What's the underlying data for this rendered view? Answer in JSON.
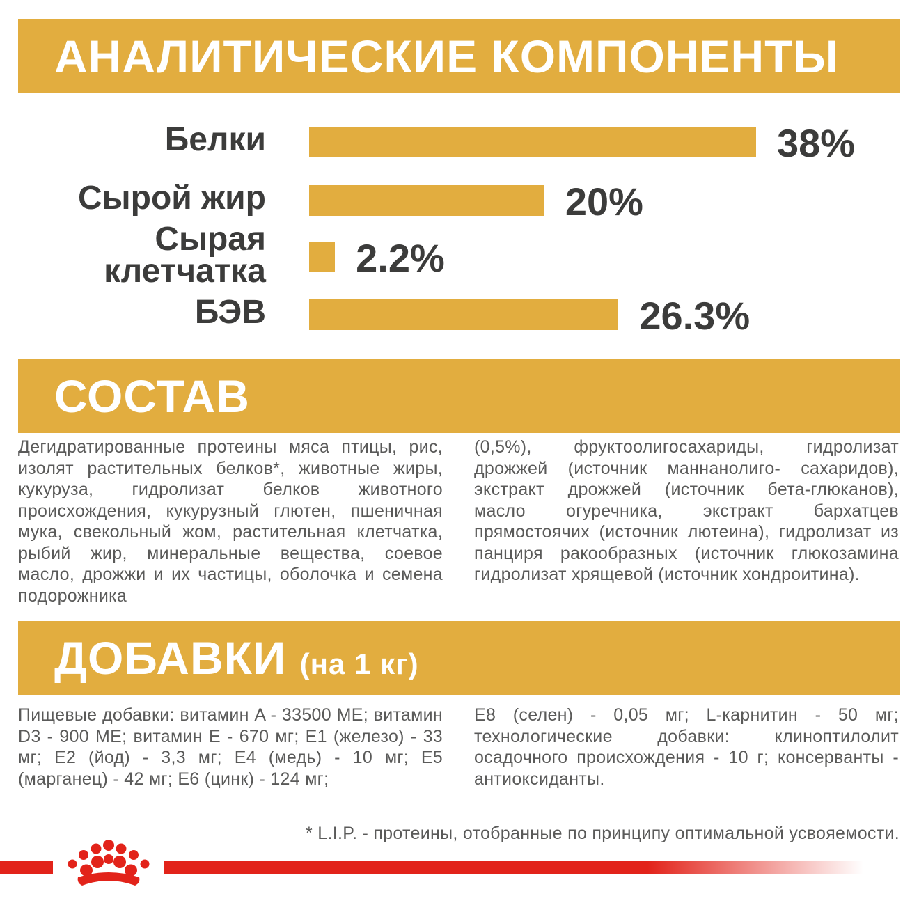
{
  "headers": {
    "analytics": "АНАЛИТИЧЕСКИЕ КОМПОНЕНТЫ",
    "composition": "СОСТАВ",
    "additives_main": "ДОБАВКИ",
    "additives_sub": "(на 1 кг)"
  },
  "chart_data": {
    "type": "bar",
    "orientation": "horizontal",
    "categories": [
      "Белки",
      "Сырой жир",
      "Сырая\nклетчатка",
      "БЭВ"
    ],
    "values": [
      38,
      20,
      2.2,
      26.3
    ],
    "value_labels": [
      "38%",
      "20%",
      "2.2%",
      "26.3%"
    ],
    "unit": "%",
    "xlim": [
      0,
      38
    ],
    "bar_color": "#e2ad3f",
    "grid": false,
    "legend": "none"
  },
  "composition": {
    "left": "Дегидратированные протеины мяса птицы, рис, изолят растительных белков*, животные жиры, кукуруза, гидролизат белков животного происхождения, кукурузный глютен, пшеничная мука, свекольный жом, растительная клетчатка, рыбий жир, минеральные вещества, соевое масло, дрожжи и их частицы, оболочка и семена подорожника",
    "right": "(0,5%), фруктоолигосахариды, гидролизат дрожжей (источник маннанолиго- сахаридов), экстракт дрожжей (источник бета-глюканов), масло огуречника, экстракт бархатцев прямостоячих (источник лютеина), гидролизат из панциря ракообразных (источник глюкозамина гидролизат хрящевой (источник хондроитина)."
  },
  "additives": {
    "left": "Пищевые добавки: витамин A - 33500 МЕ; витамин D3 - 900 МЕ; витамин E - 670 мг; E1 (железо) - 33 мг; E2 (йод) - 3,3 мг; E4 (медь) - 10 мг; E5 (марганец) - 42 мг; E6 (цинк) - 124 мг;",
    "right": "E8 (селен) - 0,05 мг; L-карнитин - 50 мг; технологические добавки: клиноптилолит осадочного происхождения - 10 г; консерванты - антиоксиданты."
  },
  "footnote": "* L.I.P. - протеины, отобранные по принципу оптимальной усвояемости.",
  "colors": {
    "accent": "#e2ad3f",
    "text": "#3c3c3b",
    "body_text": "#5a5a59",
    "brand_red": "#e2231a"
  },
  "icons": {
    "logo": "crown-logo-icon"
  }
}
